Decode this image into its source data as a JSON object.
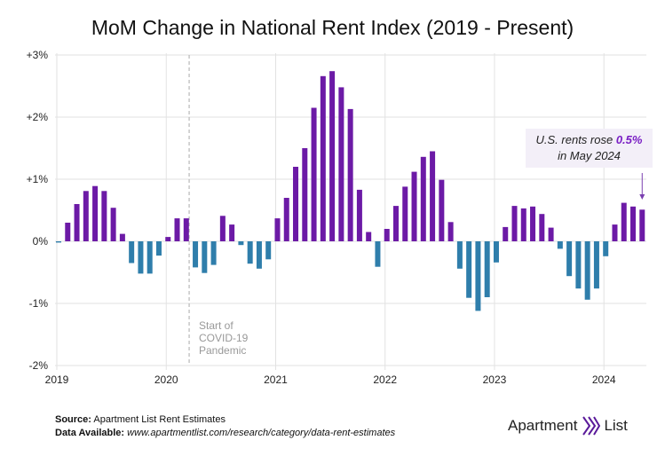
{
  "chart_data": {
    "type": "bar",
    "title": "MoM Change in National Rent Index (2019 - Present)",
    "x_tick_labels": [
      "2019",
      "2020",
      "2021",
      "2022",
      "2023",
      "2024"
    ],
    "y_tick_labels": [
      "+3%",
      "+2%",
      "+1%",
      "0%",
      "-1%",
      "-2%"
    ],
    "ylim": [
      -2,
      3
    ],
    "grid": true,
    "colors": {
      "positive": "#6c1aa6",
      "negative": "#2f7eab"
    },
    "start": "2019-01",
    "end": "2024-05",
    "values": [
      -0.02,
      0.3,
      0.6,
      0.81,
      0.89,
      0.81,
      0.54,
      0.12,
      -0.35,
      -0.52,
      -0.52,
      -0.23,
      0.07,
      0.37,
      0.37,
      -0.42,
      -0.51,
      -0.38,
      0.41,
      0.27,
      -0.06,
      -0.36,
      -0.44,
      -0.29,
      0.37,
      0.7,
      1.2,
      1.5,
      2.15,
      2.66,
      2.74,
      2.48,
      2.13,
      0.83,
      0.15,
      -0.41,
      0.2,
      0.57,
      0.88,
      1.12,
      1.36,
      1.45,
      0.99,
      0.31,
      -0.44,
      -0.91,
      -1.12,
      -0.9,
      -0.34,
      0.23,
      0.57,
      0.53,
      0.56,
      0.44,
      0.22,
      -0.12,
      -0.56,
      -0.76,
      -0.94,
      -0.76,
      -0.24,
      0.27,
      0.62,
      0.56,
      0.51
    ],
    "annotations": {
      "covid": [
        "Start of",
        "COVID-19",
        "Pandemic"
      ],
      "note_pre": "U.S. rents rose ",
      "note_value": "0.5%",
      "note_post": "in May 2024"
    }
  },
  "footer": {
    "source_label": "Source:",
    "source": " Apartment List Rent Estimates",
    "data_label": "Data Available:",
    "data_url": " www.apartmentlist.com/research/category/data-rent-estimates"
  },
  "logo": {
    "text": "Apartment",
    "text2": "List"
  }
}
